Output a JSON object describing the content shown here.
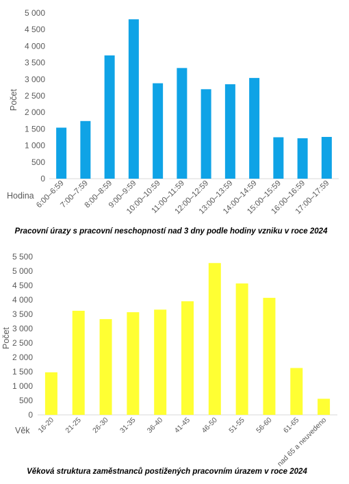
{
  "chart_data": [
    {
      "type": "bar",
      "title": "Pracovní úrazy s pracovní neschopností nad 3 dny podle hodiny vzniku v roce 2024",
      "xlabel": "Hodina",
      "ylabel": "Počet",
      "ylim": [
        0,
        5000
      ],
      "yticks": [
        0,
        500,
        1000,
        1500,
        2000,
        2500,
        3000,
        3500,
        4000,
        4500,
        5000
      ],
      "ytick_labels": [
        "0",
        "500",
        "1 000",
        "1 500",
        "2 000",
        "2 500",
        "3 000",
        "3 500",
        "4 000",
        "4 500",
        "5 000"
      ],
      "grid": false,
      "legend": "none",
      "bar_color": "#0fa3e6",
      "categories": [
        "6:00–6:59",
        "7:00–7:59",
        "8:00–8:59",
        "9:00–9:59",
        "10:00–10:59",
        "11:00–11:59",
        "12:00–12:59",
        "13:00–13:59",
        "14:00–14:59",
        "15:00–15:59",
        "16:00–16:59",
        "17:00–17:59"
      ],
      "values": [
        1540,
        1740,
        3720,
        4810,
        2880,
        3340,
        2700,
        2850,
        3040,
        1250,
        1220,
        1260
      ]
    },
    {
      "type": "bar",
      "title": "Věková struktura zaměstnanců postižených pracovním úrazem v roce 2024",
      "xlabel": "Věk",
      "ylabel": "Počet",
      "ylim": [
        0,
        5500
      ],
      "yticks": [
        0,
        500,
        1000,
        1500,
        2000,
        2500,
        3000,
        3500,
        4000,
        4500,
        5000,
        5500
      ],
      "ytick_labels": [
        "0",
        "500",
        "1 000",
        "1 500",
        "2 000",
        "2 500",
        "3 000",
        "3 500",
        "4 000",
        "4 500",
        "5 000",
        "5 500"
      ],
      "grid": false,
      "legend": "none",
      "bar_color": "#ffff33",
      "categories": [
        "16-20",
        "21-25",
        "26-30",
        "31-35",
        "36-40",
        "41-45",
        "46-50",
        "51-55",
        "56-60",
        "61-65",
        "nad 65 a neuvedeno"
      ],
      "values": [
        1480,
        3620,
        3330,
        3570,
        3660,
        3950,
        5280,
        4570,
        4070,
        1630,
        560
      ]
    }
  ]
}
